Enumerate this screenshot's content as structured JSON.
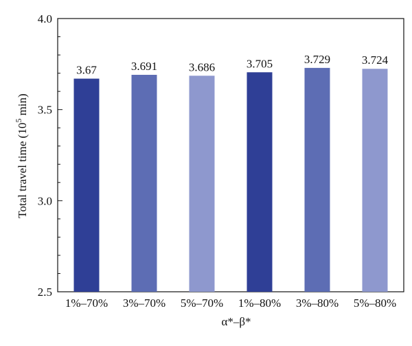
{
  "chart_data": {
    "type": "bar",
    "categories": [
      "1%–70%",
      "3%–70%",
      "5%–70%",
      "1%–80%",
      "3%–80%",
      "5%–80%"
    ],
    "values": [
      3.67,
      3.691,
      3.686,
      3.705,
      3.729,
      3.724
    ],
    "value_labels": [
      "3.67",
      "3.691",
      "3.686",
      "3.705",
      "3.729",
      "3.724"
    ],
    "bar_colors": [
      "#2f3f96",
      "#5d6db4",
      "#8e98ce",
      "#2f3f96",
      "#5d6db4",
      "#8e98ce"
    ],
    "xlabel": "α*–β*",
    "ylabel_main": "Total travel time (10",
    "ylabel_sup": "5",
    "ylabel_tail": " min)",
    "ylim": [
      2.5,
      4.0
    ],
    "yticks": [
      2.5,
      3.0,
      3.5,
      4.0
    ],
    "ytick_labels": [
      "2.5",
      "3.0",
      "3.5",
      "4.0"
    ],
    "grid": false,
    "legend": "none"
  }
}
